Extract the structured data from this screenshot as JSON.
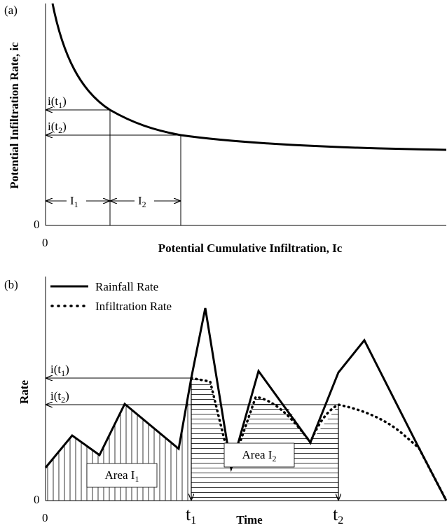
{
  "panel_a": {
    "tag": "(a)",
    "y_label": "Potential Infiltration Rate, ic",
    "x_label": "Potential Cumulative Infiltration, Ic",
    "y_origin": "0",
    "x_origin": "0",
    "rate_1": {
      "base": "i(t",
      "sub": "1",
      "tail": ")"
    },
    "rate_2": {
      "base": "i(t",
      "sub": "2",
      "tail": ")"
    },
    "interval_1": {
      "base": "I",
      "sub": "1"
    },
    "interval_2": {
      "base": "I",
      "sub": "2"
    }
  },
  "panel_b": {
    "tag": "(b)",
    "legend": [
      "Rainfall Rate",
      "Infiltration Rate"
    ],
    "y_label": "Rate",
    "x_label": "Time",
    "y_origin": "0",
    "x_origin": "0",
    "rate_1": {
      "base": "i(t",
      "sub": "1",
      "tail": ")"
    },
    "rate_2": {
      "base": "i(t",
      "sub": "2",
      "tail": ")"
    },
    "area_1": {
      "base": "Area I",
      "sub": "1"
    },
    "area_2": {
      "base": "Area I",
      "sub": "2"
    },
    "time_1": {
      "base": "t",
      "sub": "1"
    },
    "time_2": {
      "base": "t",
      "sub": "2"
    }
  }
}
